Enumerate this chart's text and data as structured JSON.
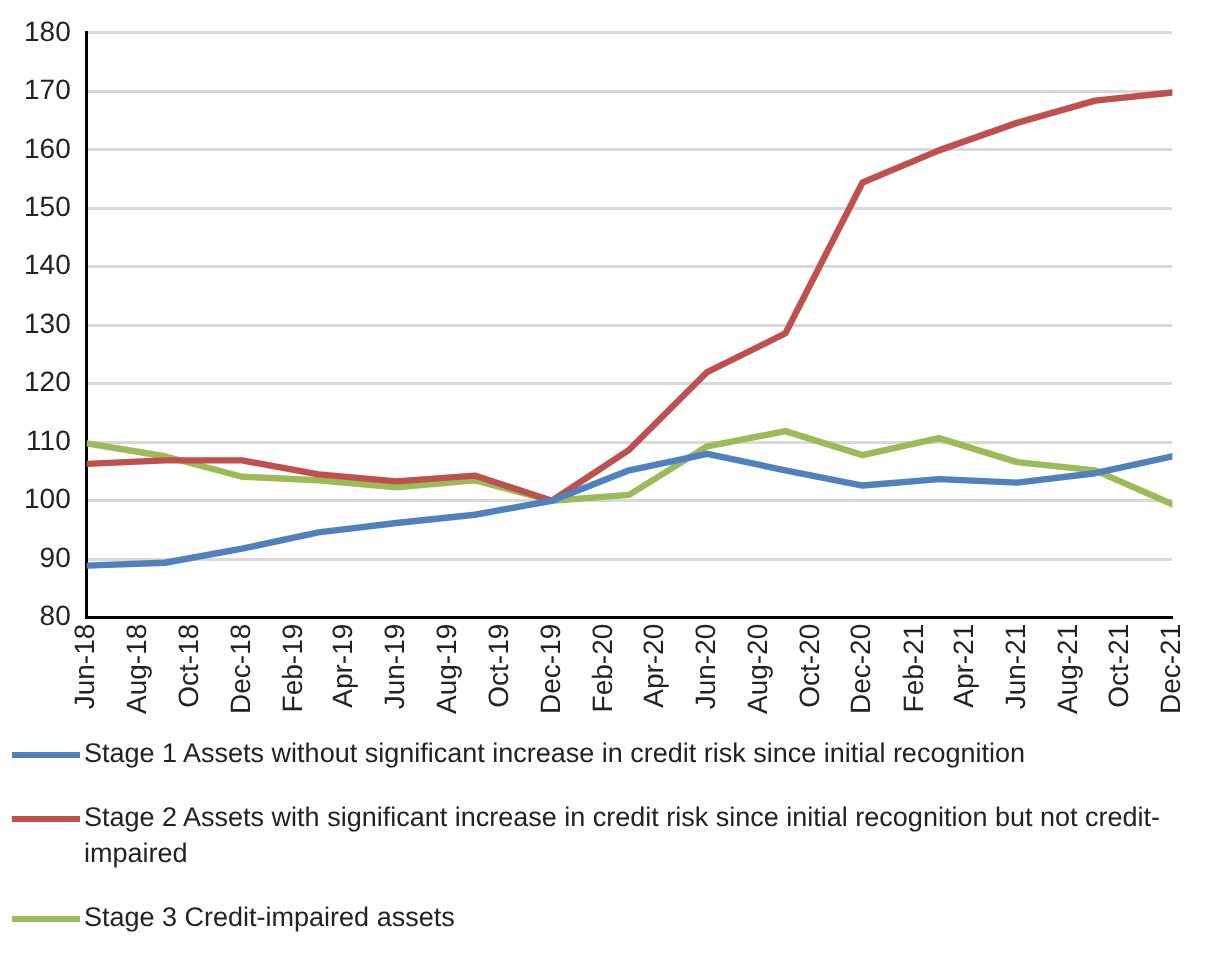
{
  "chart_data": {
    "type": "line",
    "x": [
      "2018-06",
      "2018-09",
      "2018-12",
      "2019-03",
      "2019-06",
      "2019-09",
      "2019-12",
      "2020-03",
      "2020-06",
      "2020-09",
      "2020-12",
      "2021-03",
      "2021-06",
      "2021-09",
      "2021-12"
    ],
    "series": [
      {
        "name": "Stage 1 Assets without significant increase in credit risk since initial recognition",
        "color": "#4f81bd",
        "values": [
          88.9,
          89.4,
          91.8,
          94.6,
          96.2,
          97.6,
          100,
          105.2,
          108,
          105.2,
          102.6,
          103.7,
          103.1,
          104.7,
          107.6
        ]
      },
      {
        "name": "Stage 2 Assets with significant increase in credit risk since initial recognition but not credit-impaired",
        "color": "#c0504d",
        "values": [
          106.3,
          106.9,
          106.9,
          104.5,
          103.3,
          104.3,
          100,
          108.7,
          122,
          128.6,
          154.4,
          159.9,
          164.6,
          168.4,
          169.8
        ]
      },
      {
        "name": "Stage 3 Credit-impaired assets",
        "color": "#9bbb59",
        "values": [
          109.8,
          107.6,
          104.1,
          103.5,
          102.3,
          103.5,
          100,
          101,
          109.3,
          111.9,
          107.8,
          110.7,
          106.6,
          105.2,
          99.4
        ]
      }
    ],
    "xlim": [
      "2018-06",
      "2021-12"
    ],
    "xticks": [
      {
        "value": "2018-06",
        "label": "Jun-18"
      },
      {
        "value": "2018-08",
        "label": "Aug-18"
      },
      {
        "value": "2018-10",
        "label": "Oct-18"
      },
      {
        "value": "2018-12",
        "label": "Dec-18"
      },
      {
        "value": "2019-02",
        "label": "Feb-19"
      },
      {
        "value": "2019-04",
        "label": "Apr-19"
      },
      {
        "value": "2019-06",
        "label": "Jun-19"
      },
      {
        "value": "2019-08",
        "label": "Aug-19"
      },
      {
        "value": "2019-10",
        "label": "Oct-19"
      },
      {
        "value": "2019-12",
        "label": "Dec-19"
      },
      {
        "value": "2020-02",
        "label": "Feb-20"
      },
      {
        "value": "2020-04",
        "label": "Apr-20"
      },
      {
        "value": "2020-06",
        "label": "Jun-20"
      },
      {
        "value": "2020-08",
        "label": "Aug-20"
      },
      {
        "value": "2020-10",
        "label": "Oct-20"
      },
      {
        "value": "2020-12",
        "label": "Dec-20"
      },
      {
        "value": "2021-02",
        "label": "Feb-21"
      },
      {
        "value": "2021-04",
        "label": "Apr-21"
      },
      {
        "value": "2021-06",
        "label": "Jun-21"
      },
      {
        "value": "2021-08",
        "label": "Aug-21"
      },
      {
        "value": "2021-10",
        "label": "Oct-21"
      },
      {
        "value": "2021-12",
        "label": "Dec-21"
      }
    ],
    "ylim": [
      80,
      180
    ],
    "yticks": [
      80,
      90,
      100,
      110,
      120,
      130,
      140,
      150,
      160,
      170,
      180
    ],
    "grid": "y",
    "legend": "bottom",
    "marker": "none",
    "line_style": "solid"
  }
}
